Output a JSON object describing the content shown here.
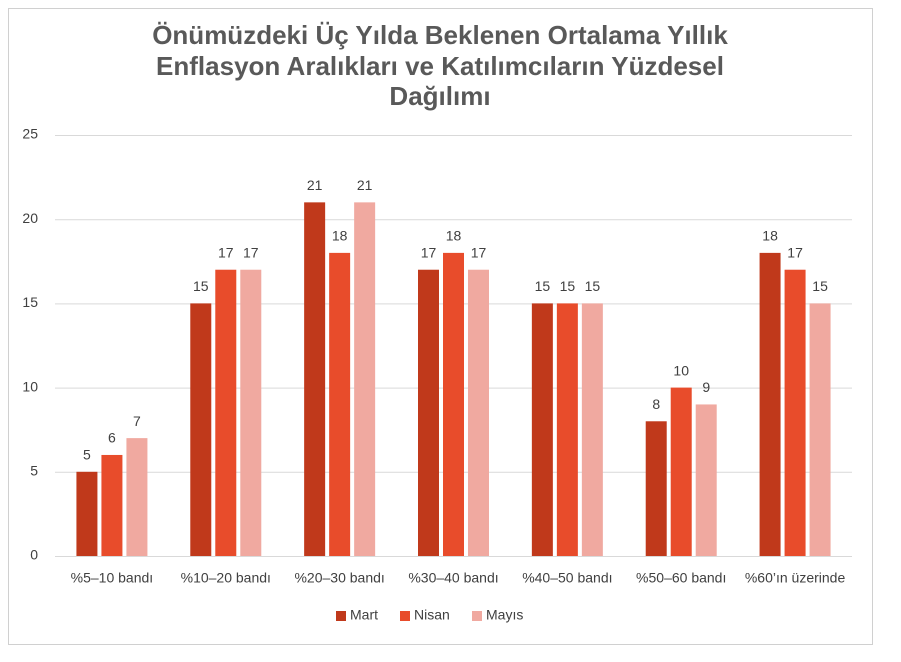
{
  "chart_data": {
    "type": "bar",
    "title": [
      "Önümüzdeki Üç Yılda Beklenen Ortalama Yıllık",
      "Enflasyon Aralıkları ve Katılımcıların Yüzdesel",
      "Dağılımı"
    ],
    "categories": [
      "%5–10 bandı",
      "%10–20 bandı",
      "%20–30 bandı",
      "%30–40 bandı",
      "%40–50 bandı",
      "%50–60 bandı",
      "%60’ın üzerinde"
    ],
    "series": [
      {
        "name": "Mart",
        "color": "#c0391b",
        "values": [
          5,
          15,
          21,
          17,
          15,
          8,
          18
        ]
      },
      {
        "name": "Nisan",
        "color": "#e84c2b",
        "values": [
          6,
          17,
          18,
          18,
          15,
          10,
          17
        ]
      },
      {
        "name": "Mayıs",
        "color": "#f0a9a0",
        "values": [
          7,
          17,
          21,
          17,
          15,
          9,
          15
        ]
      }
    ],
    "ylim": [
      0,
      25
    ],
    "yticks": [
      0,
      5,
      10,
      15,
      20,
      25
    ],
    "grid": true,
    "legend": "bottom"
  }
}
